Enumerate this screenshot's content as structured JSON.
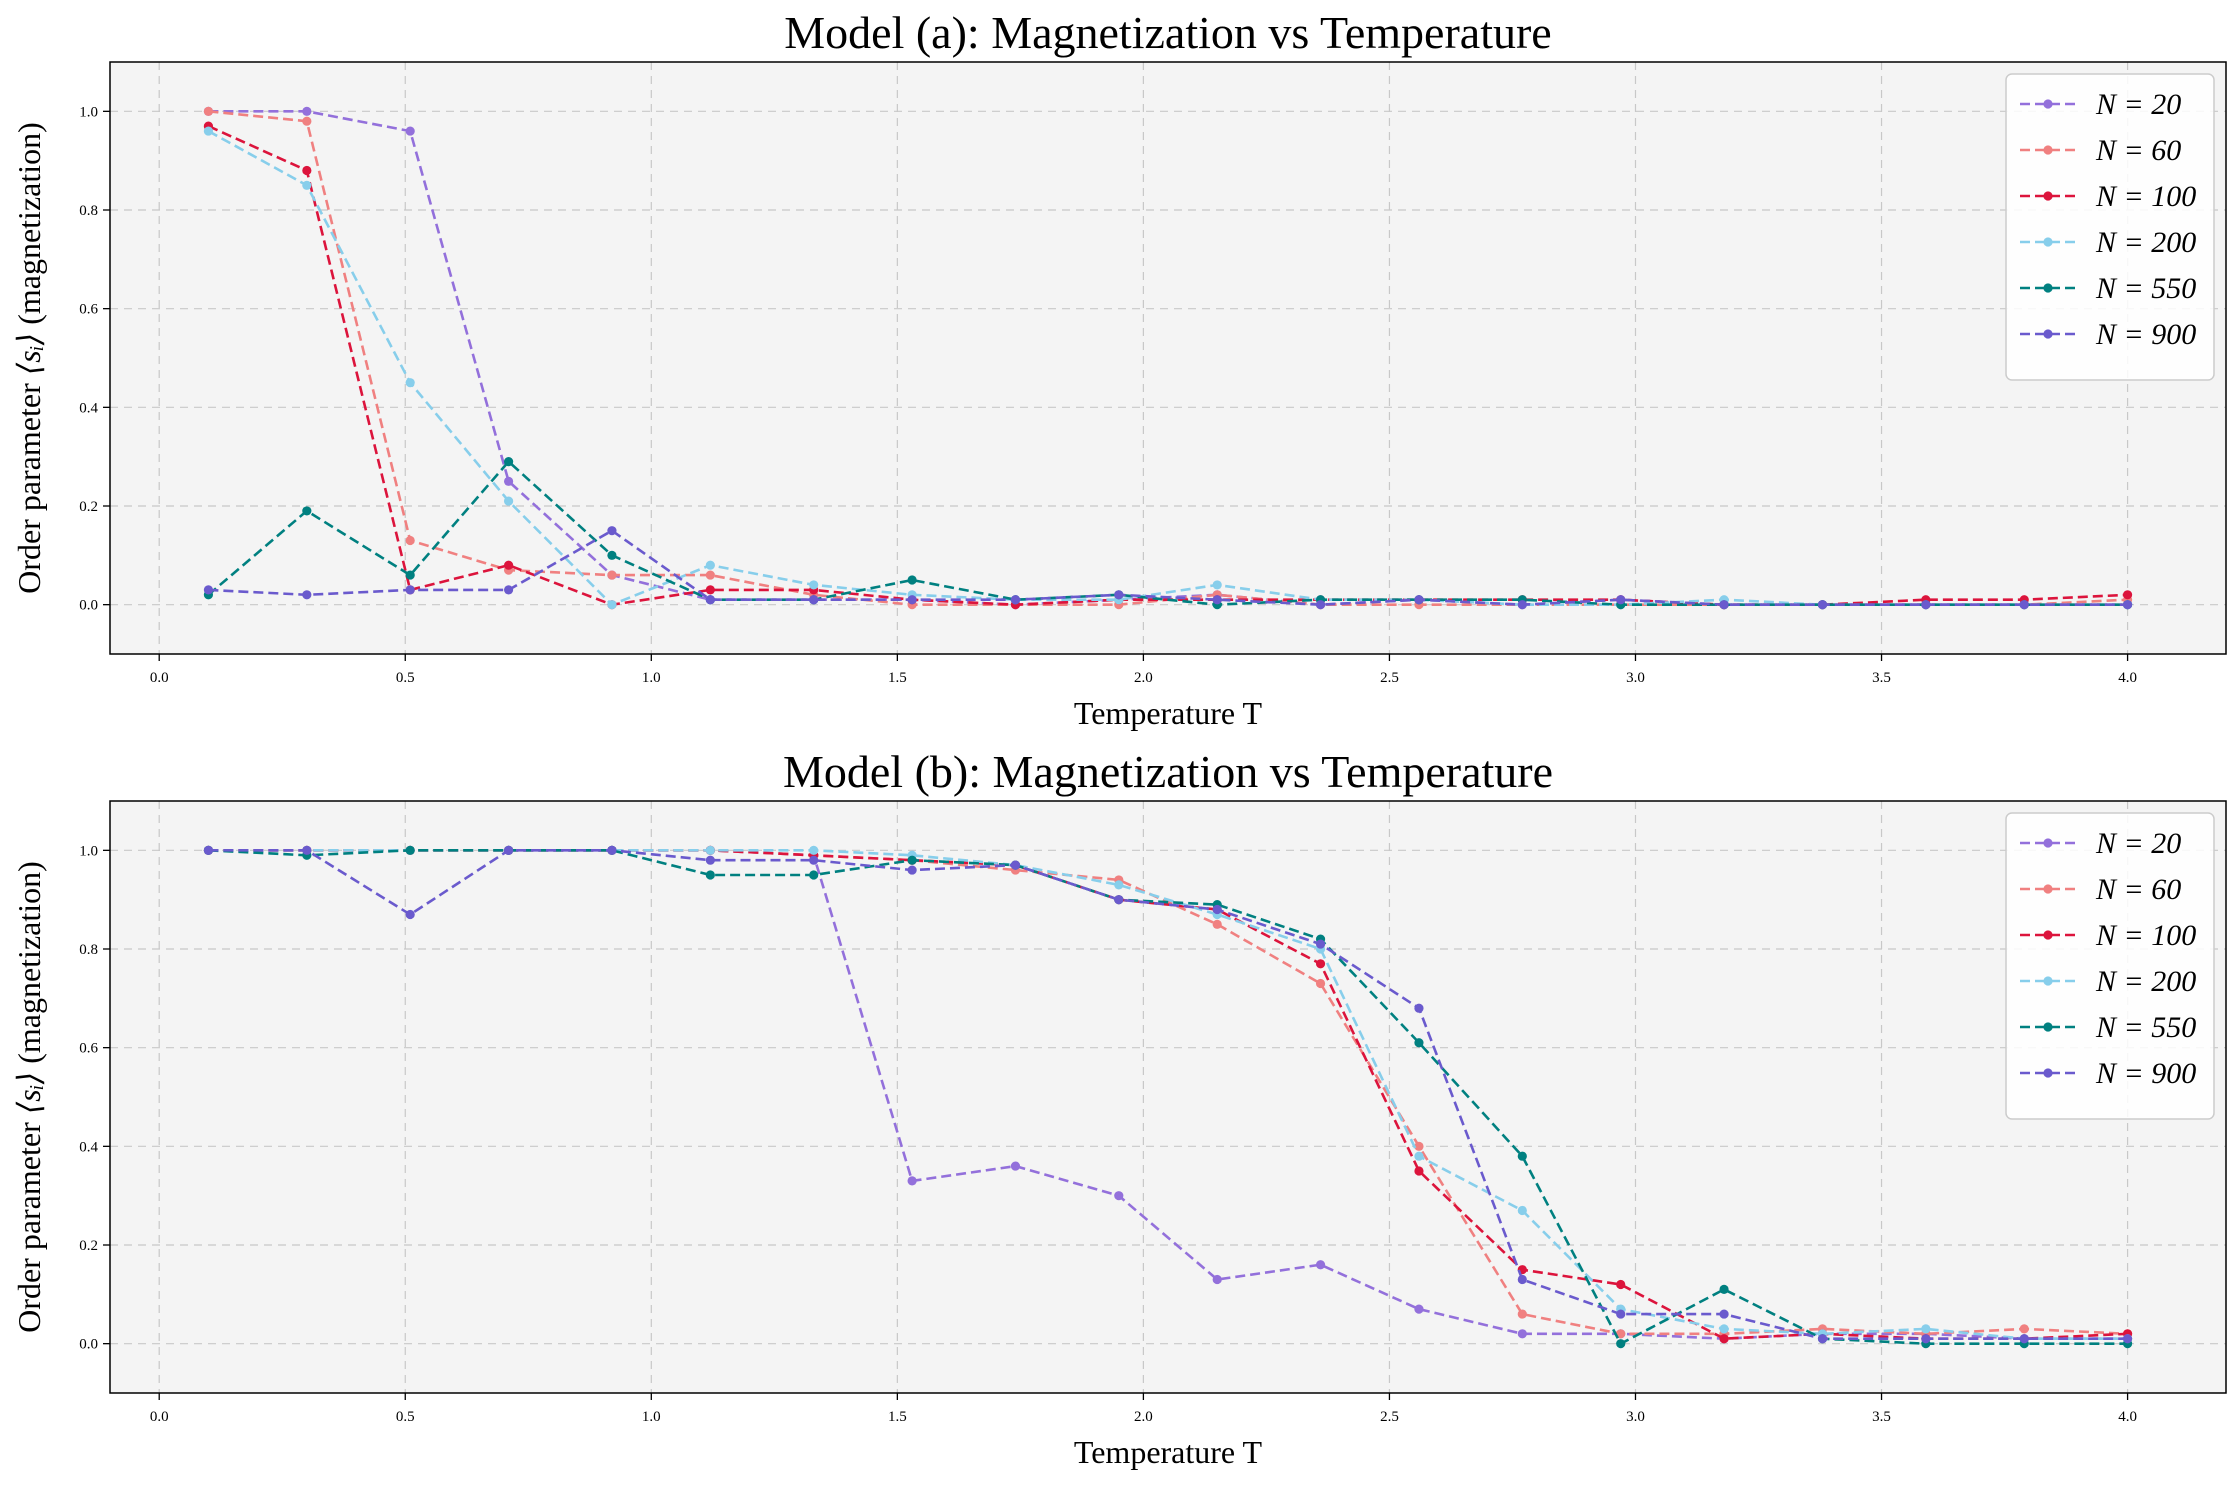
{
  "chart_data": [
    {
      "type": "line",
      "title": "Model (a): Magnetization vs Temperature",
      "xlabel": "Temperature T",
      "ylabel_prefix": "Order parameter ",
      "ylabel_math": "⟨sᵢ⟩",
      "ylabel_suffix": " (magnetization)",
      "xlim": [
        -0.1,
        4.2
      ],
      "ylim": [
        -0.1,
        1.1
      ],
      "xticks": [
        "0.0",
        "0.5",
        "1.0",
        "1.5",
        "2.0",
        "2.5",
        "3.0",
        "3.5",
        "4.0"
      ],
      "yticks": [
        "0.0",
        "0.2",
        "0.4",
        "0.6",
        "0.8",
        "1.0"
      ],
      "grid": true,
      "legend_position": "upper-right",
      "x": [
        0.1,
        0.3,
        0.51,
        0.71,
        0.92,
        1.12,
        1.33,
        1.53,
        1.74,
        1.95,
        2.15,
        2.36,
        2.56,
        2.77,
        2.97,
        3.18,
        3.38,
        3.59,
        3.79,
        4.0
      ],
      "series": [
        {
          "name": "N = 20",
          "color": "#9370DB",
          "values": [
            1.0,
            1.0,
            0.96,
            0.25,
            0.06,
            0.01,
            0.01,
            0.01,
            0.0,
            0.01,
            0.02,
            0.0,
            0.01,
            0.0,
            0.01,
            0.0,
            0.0,
            0.0,
            0.0,
            0.0
          ]
        },
        {
          "name": "N = 60",
          "color": "#F08080",
          "values": [
            1.0,
            0.98,
            0.13,
            0.07,
            0.06,
            0.06,
            0.02,
            0.0,
            0.0,
            0.0,
            0.02,
            0.0,
            0.0,
            0.0,
            0.0,
            0.0,
            0.0,
            0.0,
            0.0,
            0.01
          ]
        },
        {
          "name": "N = 100",
          "color": "#DC143C",
          "values": [
            0.97,
            0.88,
            0.03,
            0.08,
            0.0,
            0.03,
            0.03,
            0.01,
            0.0,
            0.01,
            0.01,
            0.01,
            0.01,
            0.01,
            0.01,
            0.0,
            0.0,
            0.01,
            0.01,
            0.02
          ]
        },
        {
          "name": "N = 200",
          "color": "#87CEEB",
          "values": [
            0.96,
            0.85,
            0.45,
            0.21,
            0.0,
            0.08,
            0.04,
            0.02,
            0.01,
            0.01,
            0.04,
            0.01,
            0.01,
            0.0,
            0.0,
            0.01,
            0.0,
            0.0,
            0.0,
            0.0
          ]
        },
        {
          "name": "N = 550",
          "color": "#008080",
          "values": [
            0.02,
            0.19,
            0.06,
            0.29,
            0.1,
            0.01,
            0.01,
            0.05,
            0.01,
            0.02,
            0.0,
            0.01,
            0.01,
            0.01,
            0.0,
            0.0,
            0.0,
            0.0,
            0.0,
            0.0
          ]
        },
        {
          "name": "N = 900",
          "color": "#6A5ACD",
          "values": [
            0.03,
            0.02,
            0.03,
            0.03,
            0.15,
            0.01,
            0.01,
            0.01,
            0.01,
            0.02,
            0.01,
            0.0,
            0.01,
            0.0,
            0.01,
            0.0,
            0.0,
            0.0,
            0.0,
            0.0
          ]
        }
      ]
    },
    {
      "type": "line",
      "title": "Model (b): Magnetization vs Temperature",
      "xlabel": "Temperature T",
      "ylabel_prefix": "Order parameter ",
      "ylabel_math": "⟨sᵢ⟩",
      "ylabel_suffix": " (magnetization)",
      "xlim": [
        -0.1,
        4.2
      ],
      "ylim": [
        -0.1,
        1.1
      ],
      "xticks": [
        "0.0",
        "0.5",
        "1.0",
        "1.5",
        "2.0",
        "2.5",
        "3.0",
        "3.5",
        "4.0"
      ],
      "yticks": [
        "0.0",
        "0.2",
        "0.4",
        "0.6",
        "0.8",
        "1.0"
      ],
      "grid": true,
      "legend_position": "upper-right",
      "x": [
        0.1,
        0.3,
        0.51,
        0.71,
        0.92,
        1.12,
        1.33,
        1.53,
        1.74,
        1.95,
        2.15,
        2.36,
        2.56,
        2.77,
        2.97,
        3.18,
        3.38,
        3.59,
        3.79,
        4.0
      ],
      "series": [
        {
          "name": "N = 20",
          "color": "#9370DB",
          "values": [
            1.0,
            1.0,
            1.0,
            1.0,
            1.0,
            1.0,
            0.99,
            0.33,
            0.36,
            0.3,
            0.13,
            0.16,
            0.07,
            0.02,
            0.02,
            0.01,
            0.02,
            0.02,
            0.01,
            0.01
          ]
        },
        {
          "name": "N = 60",
          "color": "#F08080",
          "values": [
            1.0,
            1.0,
            1.0,
            1.0,
            1.0,
            1.0,
            0.99,
            0.98,
            0.96,
            0.94,
            0.85,
            0.73,
            0.4,
            0.06,
            0.02,
            0.02,
            0.03,
            0.02,
            0.03,
            0.02
          ]
        },
        {
          "name": "N = 100",
          "color": "#DC143C",
          "values": [
            1.0,
            1.0,
            1.0,
            1.0,
            1.0,
            1.0,
            0.99,
            0.98,
            0.97,
            0.9,
            0.88,
            0.77,
            0.35,
            0.15,
            0.12,
            0.01,
            0.02,
            0.01,
            0.01,
            0.02
          ]
        },
        {
          "name": "N = 200",
          "color": "#87CEEB",
          "values": [
            1.0,
            1.0,
            1.0,
            1.0,
            1.0,
            1.0,
            1.0,
            0.99,
            0.97,
            0.93,
            0.87,
            0.8,
            0.38,
            0.27,
            0.07,
            0.03,
            0.02,
            0.03,
            0.01,
            0.01
          ]
        },
        {
          "name": "N = 550",
          "color": "#008080",
          "values": [
            1.0,
            0.99,
            1.0,
            1.0,
            1.0,
            0.95,
            0.95,
            0.98,
            0.97,
            0.9,
            0.89,
            0.82,
            0.61,
            0.38,
            0.0,
            0.11,
            0.01,
            0.0,
            0.0,
            0.0
          ]
        },
        {
          "name": "N = 900",
          "color": "#6A5ACD",
          "values": [
            1.0,
            1.0,
            0.87,
            1.0,
            1.0,
            0.98,
            0.98,
            0.96,
            0.97,
            0.9,
            0.88,
            0.81,
            0.68,
            0.13,
            0.06,
            0.06,
            0.01,
            0.01,
            0.01,
            0.01
          ]
        }
      ]
    }
  ]
}
